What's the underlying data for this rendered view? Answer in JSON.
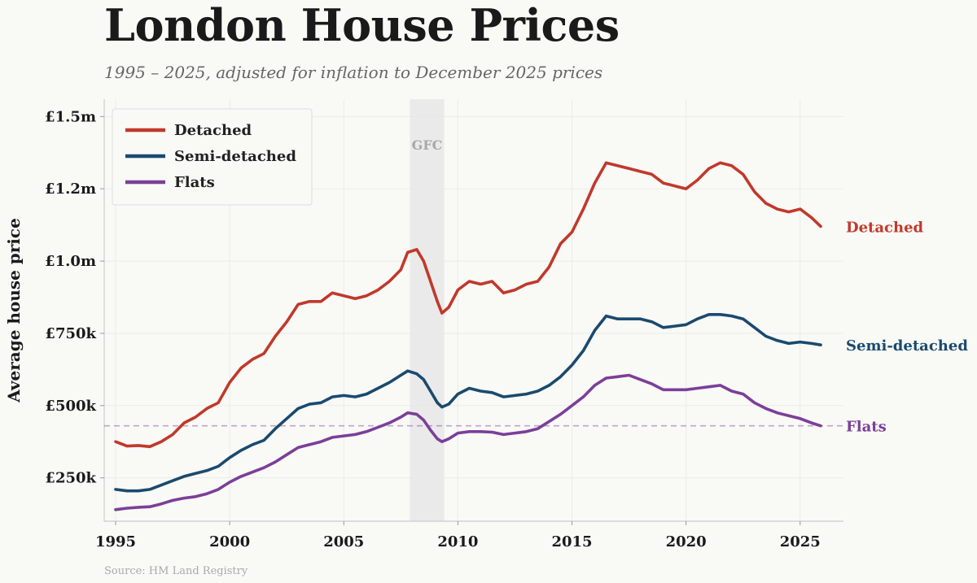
{
  "title": "London House Prices",
  "subtitle": "1995 – 2025, adjusted for inflation to December 2025 prices",
  "source": "Source: HM Land Registry",
  "chart_data": {
    "type": "line",
    "xlim": [
      1994.5,
      2026.9
    ],
    "ylim": [
      100000,
      1560000
    ],
    "ylabel": "Average house price",
    "xlabel": "",
    "grid": true,
    "x_ticks": [
      1995,
      2000,
      2005,
      2010,
      2015,
      2020,
      2025
    ],
    "x_tick_labels": [
      "1995",
      "2000",
      "2005",
      "2010",
      "2015",
      "2020",
      "2025"
    ],
    "y_ticks": [
      250000,
      500000,
      750000,
      1000000,
      1250000,
      1500000
    ],
    "y_tick_labels": [
      "£250k",
      "£500k",
      "£750k",
      "£1.0m",
      "£1.2m",
      "£1.5m"
    ],
    "legend_position": "top-left",
    "shaded_region": {
      "label": "GFC",
      "x_start": 2007.9,
      "x_end": 2009.4
    },
    "reference_line": {
      "series": "Flats",
      "y": 430000,
      "style": "dashed"
    },
    "series": [
      {
        "name": "Detached",
        "color": "#c0392b",
        "end_label": "Detached",
        "points": [
          [
            1995,
            375000
          ],
          [
            1995.5,
            360000
          ],
          [
            1996,
            362000
          ],
          [
            1996.5,
            358000
          ],
          [
            1997,
            375000
          ],
          [
            1997.5,
            400000
          ],
          [
            1998,
            440000
          ],
          [
            1998.5,
            460000
          ],
          [
            1999,
            490000
          ],
          [
            1999.5,
            510000
          ],
          [
            2000,
            580000
          ],
          [
            2000.5,
            630000
          ],
          [
            2001,
            660000
          ],
          [
            2001.5,
            680000
          ],
          [
            2002,
            740000
          ],
          [
            2002.5,
            790000
          ],
          [
            2003,
            850000
          ],
          [
            2003.5,
            860000
          ],
          [
            2004,
            860000
          ],
          [
            2004.5,
            890000
          ],
          [
            2005,
            880000
          ],
          [
            2005.5,
            870000
          ],
          [
            2006,
            880000
          ],
          [
            2006.5,
            900000
          ],
          [
            2007,
            930000
          ],
          [
            2007.5,
            970000
          ],
          [
            2007.8,
            1030000
          ],
          [
            2008.2,
            1040000
          ],
          [
            2008.5,
            1000000
          ],
          [
            2008.8,
            930000
          ],
          [
            2009.1,
            860000
          ],
          [
            2009.3,
            820000
          ],
          [
            2009.6,
            840000
          ],
          [
            2010,
            900000
          ],
          [
            2010.5,
            930000
          ],
          [
            2011,
            920000
          ],
          [
            2011.5,
            930000
          ],
          [
            2012,
            890000
          ],
          [
            2012.5,
            900000
          ],
          [
            2013,
            920000
          ],
          [
            2013.5,
            930000
          ],
          [
            2014,
            980000
          ],
          [
            2014.5,
            1060000
          ],
          [
            2015,
            1100000
          ],
          [
            2015.5,
            1180000
          ],
          [
            2016,
            1270000
          ],
          [
            2016.5,
            1340000
          ],
          [
            2017,
            1330000
          ],
          [
            2017.5,
            1320000
          ],
          [
            2018,
            1310000
          ],
          [
            2018.5,
            1300000
          ],
          [
            2019,
            1270000
          ],
          [
            2019.5,
            1260000
          ],
          [
            2020,
            1250000
          ],
          [
            2020.5,
            1280000
          ],
          [
            2021,
            1320000
          ],
          [
            2021.5,
            1340000
          ],
          [
            2022,
            1330000
          ],
          [
            2022.5,
            1300000
          ],
          [
            2023,
            1240000
          ],
          [
            2023.5,
            1200000
          ],
          [
            2024,
            1180000
          ],
          [
            2024.5,
            1170000
          ],
          [
            2025,
            1180000
          ],
          [
            2025.5,
            1150000
          ],
          [
            2025.9,
            1120000
          ]
        ]
      },
      {
        "name": "Semi-detached",
        "color": "#1a4a6e",
        "end_label": "Semi-detached",
        "points": [
          [
            1995,
            210000
          ],
          [
            1995.5,
            205000
          ],
          [
            1996,
            205000
          ],
          [
            1996.5,
            210000
          ],
          [
            1997,
            225000
          ],
          [
            1997.5,
            240000
          ],
          [
            1998,
            255000
          ],
          [
            1998.5,
            265000
          ],
          [
            1999,
            275000
          ],
          [
            1999.5,
            290000
          ],
          [
            2000,
            320000
          ],
          [
            2000.5,
            345000
          ],
          [
            2001,
            365000
          ],
          [
            2001.5,
            380000
          ],
          [
            2002,
            420000
          ],
          [
            2002.5,
            455000
          ],
          [
            2003,
            490000
          ],
          [
            2003.5,
            505000
          ],
          [
            2004,
            510000
          ],
          [
            2004.5,
            530000
          ],
          [
            2005,
            535000
          ],
          [
            2005.5,
            530000
          ],
          [
            2006,
            540000
          ],
          [
            2006.5,
            560000
          ],
          [
            2007,
            580000
          ],
          [
            2007.5,
            605000
          ],
          [
            2007.8,
            620000
          ],
          [
            2008.2,
            610000
          ],
          [
            2008.5,
            590000
          ],
          [
            2008.8,
            550000
          ],
          [
            2009.1,
            510000
          ],
          [
            2009.3,
            495000
          ],
          [
            2009.6,
            505000
          ],
          [
            2010,
            540000
          ],
          [
            2010.5,
            560000
          ],
          [
            2011,
            550000
          ],
          [
            2011.5,
            545000
          ],
          [
            2012,
            530000
          ],
          [
            2012.5,
            535000
          ],
          [
            2013,
            540000
          ],
          [
            2013.5,
            550000
          ],
          [
            2014,
            570000
          ],
          [
            2014.5,
            600000
          ],
          [
            2015,
            640000
          ],
          [
            2015.5,
            690000
          ],
          [
            2016,
            760000
          ],
          [
            2016.5,
            810000
          ],
          [
            2017,
            800000
          ],
          [
            2017.5,
            800000
          ],
          [
            2018,
            800000
          ],
          [
            2018.5,
            790000
          ],
          [
            2019,
            770000
          ],
          [
            2019.5,
            775000
          ],
          [
            2020,
            780000
          ],
          [
            2020.5,
            800000
          ],
          [
            2021,
            815000
          ],
          [
            2021.5,
            815000
          ],
          [
            2022,
            810000
          ],
          [
            2022.5,
            800000
          ],
          [
            2023,
            770000
          ],
          [
            2023.5,
            740000
          ],
          [
            2024,
            725000
          ],
          [
            2024.5,
            715000
          ],
          [
            2025,
            720000
          ],
          [
            2025.5,
            715000
          ],
          [
            2025.9,
            710000
          ]
        ]
      },
      {
        "name": "Flats",
        "color": "#7b3f98",
        "end_label": "Flats",
        "points": [
          [
            1995,
            140000
          ],
          [
            1995.5,
            145000
          ],
          [
            1996,
            148000
          ],
          [
            1996.5,
            150000
          ],
          [
            1997,
            160000
          ],
          [
            1997.5,
            172000
          ],
          [
            1998,
            180000
          ],
          [
            1998.5,
            185000
          ],
          [
            1999,
            195000
          ],
          [
            1999.5,
            210000
          ],
          [
            2000,
            235000
          ],
          [
            2000.5,
            255000
          ],
          [
            2001,
            270000
          ],
          [
            2001.5,
            285000
          ],
          [
            2002,
            305000
          ],
          [
            2002.5,
            330000
          ],
          [
            2003,
            355000
          ],
          [
            2003.5,
            365000
          ],
          [
            2004,
            375000
          ],
          [
            2004.5,
            390000
          ],
          [
            2005,
            395000
          ],
          [
            2005.5,
            400000
          ],
          [
            2006,
            410000
          ],
          [
            2006.5,
            425000
          ],
          [
            2007,
            440000
          ],
          [
            2007.5,
            460000
          ],
          [
            2007.8,
            475000
          ],
          [
            2008.2,
            470000
          ],
          [
            2008.5,
            450000
          ],
          [
            2008.8,
            415000
          ],
          [
            2009.1,
            385000
          ],
          [
            2009.3,
            375000
          ],
          [
            2009.6,
            385000
          ],
          [
            2010,
            405000
          ],
          [
            2010.5,
            410000
          ],
          [
            2011,
            410000
          ],
          [
            2011.5,
            408000
          ],
          [
            2012,
            400000
          ],
          [
            2012.5,
            405000
          ],
          [
            2013,
            410000
          ],
          [
            2013.5,
            420000
          ],
          [
            2014,
            445000
          ],
          [
            2014.5,
            470000
          ],
          [
            2015,
            500000
          ],
          [
            2015.5,
            530000
          ],
          [
            2016,
            570000
          ],
          [
            2016.5,
            595000
          ],
          [
            2017,
            600000
          ],
          [
            2017.5,
            605000
          ],
          [
            2018,
            590000
          ],
          [
            2018.5,
            575000
          ],
          [
            2019,
            555000
          ],
          [
            2019.5,
            555000
          ],
          [
            2020,
            555000
          ],
          [
            2020.5,
            560000
          ],
          [
            2021,
            565000
          ],
          [
            2021.5,
            570000
          ],
          [
            2022,
            550000
          ],
          [
            2022.5,
            540000
          ],
          [
            2023,
            510000
          ],
          [
            2023.5,
            490000
          ],
          [
            2024,
            475000
          ],
          [
            2024.5,
            465000
          ],
          [
            2025,
            455000
          ],
          [
            2025.5,
            440000
          ],
          [
            2025.9,
            430000
          ]
        ]
      }
    ]
  }
}
